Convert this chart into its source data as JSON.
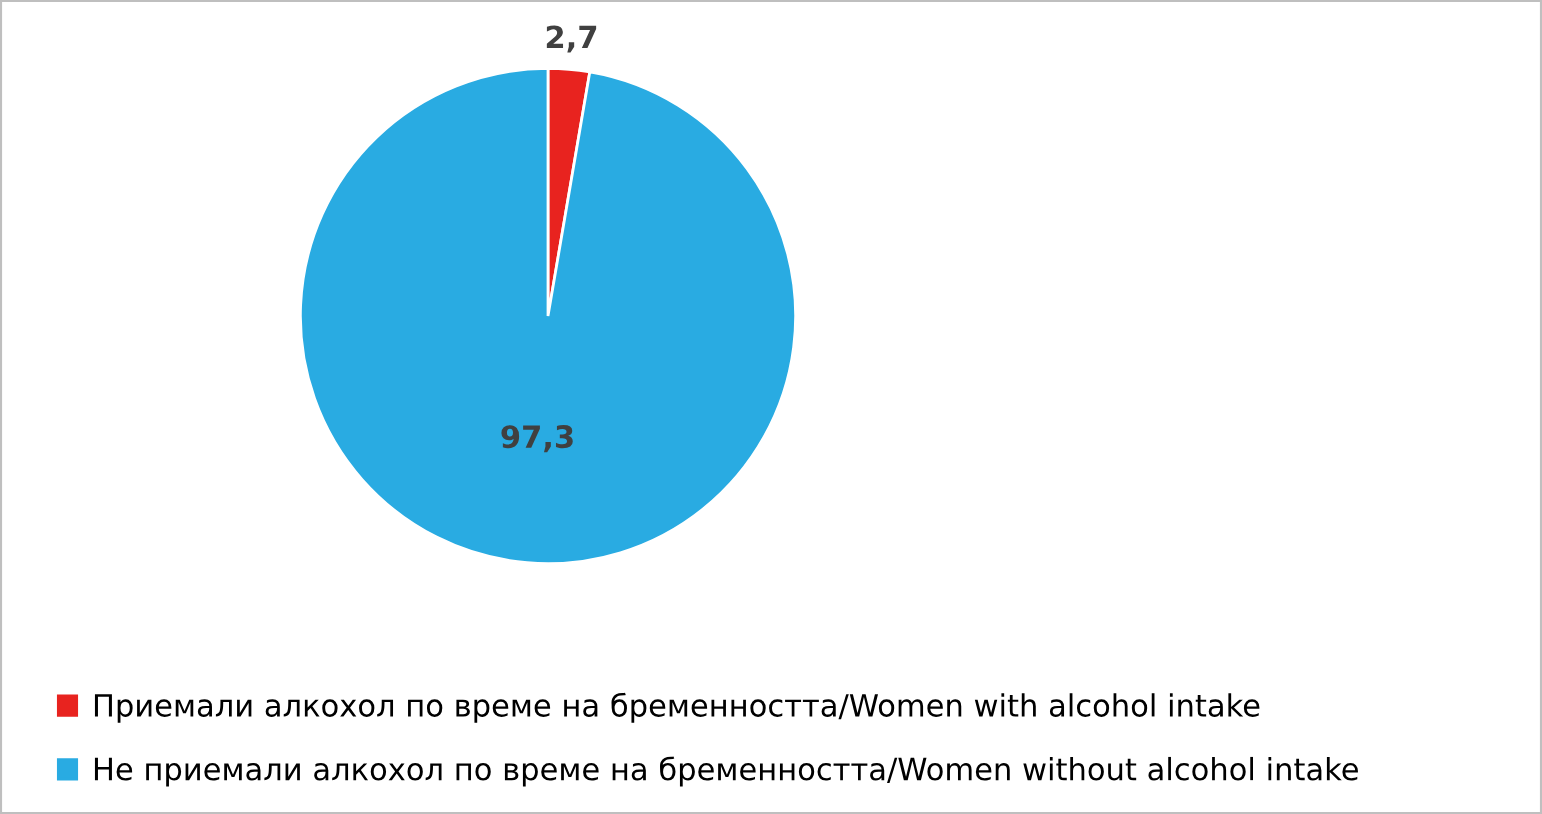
{
  "chart_data": {
    "type": "pie",
    "categories": [
      "Приемали алкохол по време на бременността/Women with alcohol intake",
      "Не приемали алкохол по време на бременността/Women without alcohol intake"
    ],
    "values": [
      2.7,
      97.3
    ],
    "colors": [
      "#e8231f",
      "#29abe2"
    ],
    "value_labels": [
      "2,7",
      "97,3"
    ],
    "legend": "bottom"
  }
}
